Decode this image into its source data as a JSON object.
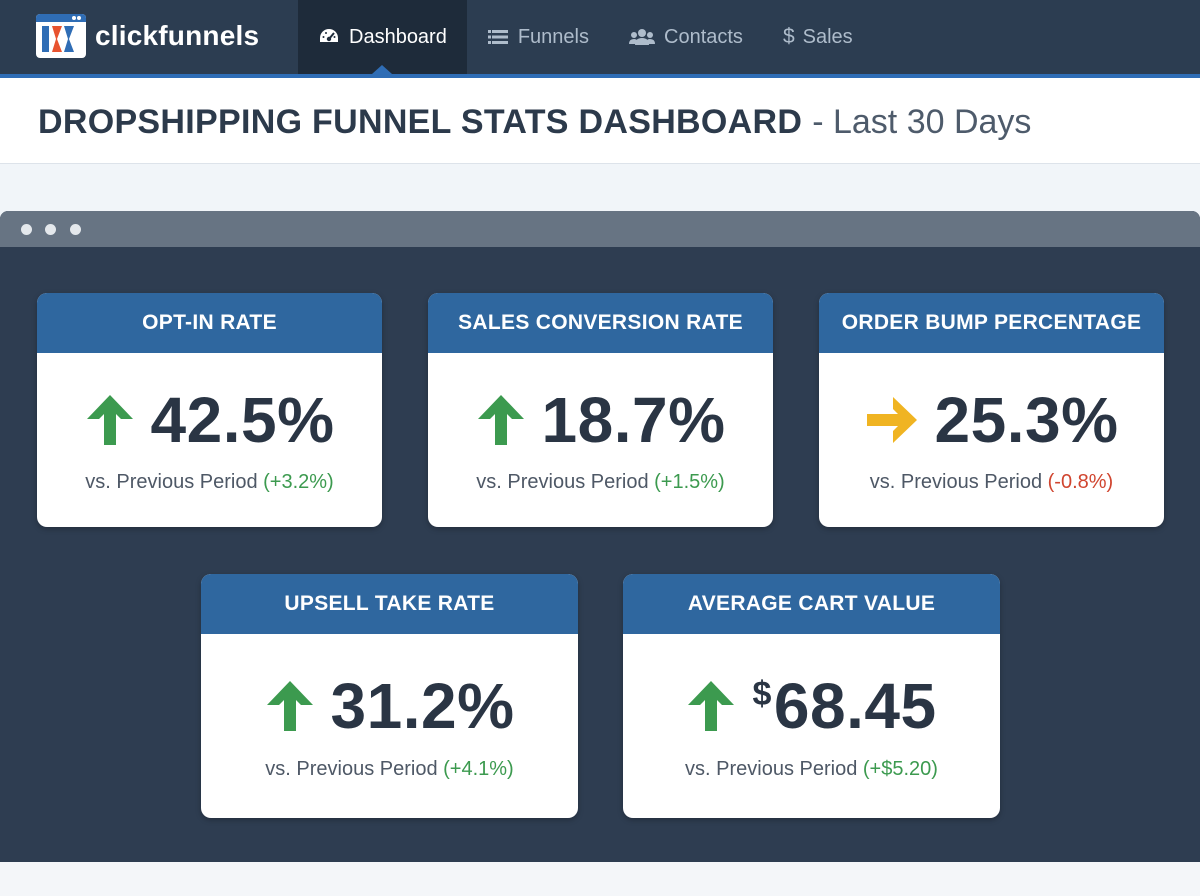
{
  "app": {
    "brand": "clickfunnels",
    "logo_icon": "clickfunnels-logo-icon",
    "colors": {
      "nav_bg": "#2c3d51",
      "nav_active_bg": "#1e2b3a",
      "accent": "#2f6db5",
      "card_header": "#2f679f",
      "panel_bg": "#2e3d51",
      "positive": "#3c9a4f",
      "negative": "#d0452f",
      "neutral_arrow": "#f0b422"
    }
  },
  "nav": {
    "items": [
      {
        "label": "Dashboard",
        "icon": "speedometer-icon",
        "active": true
      },
      {
        "label": "Funnels",
        "icon": "list-icon",
        "active": false
      },
      {
        "label": "Contacts",
        "icon": "users-icon",
        "active": false
      },
      {
        "label": "Sales",
        "icon": "dollar-icon",
        "active": false
      }
    ]
  },
  "header": {
    "title": "DROPSHIPPING FUNNEL STATS DASHBOARD",
    "subtitle": "- Last 30 Days"
  },
  "metrics": [
    {
      "title": "OPT-IN RATE",
      "value": "42.5%",
      "compare_prefix": "vs. Previous Period",
      "change": "(+3.2%)",
      "trend": "up",
      "icon": "arrow-up-icon"
    },
    {
      "title": "SALES CONVERSION RATE",
      "value": "18.7%",
      "compare_prefix": "vs. Previous Period",
      "change": "(+1.5%)",
      "trend": "up",
      "icon": "arrow-up-icon"
    },
    {
      "title": "ORDER BUMP PERCENTAGE",
      "value": "25.3%",
      "compare_prefix": "vs. Previous Period",
      "change": "(-0.8%)",
      "trend": "flat",
      "icon": "arrow-right-icon"
    },
    {
      "title": "UPSELL TAKE RATE",
      "value": "31.2%",
      "compare_prefix": "vs. Previous Period",
      "change": "(+4.1%)",
      "trend": "up",
      "icon": "arrow-up-icon"
    },
    {
      "title": "AVERAGE CART VALUE",
      "currency": "$",
      "value": "68.45",
      "compare_prefix": "vs. Previous Period",
      "change": "(+$5.20)",
      "trend": "up",
      "icon": "arrow-up-icon"
    }
  ]
}
